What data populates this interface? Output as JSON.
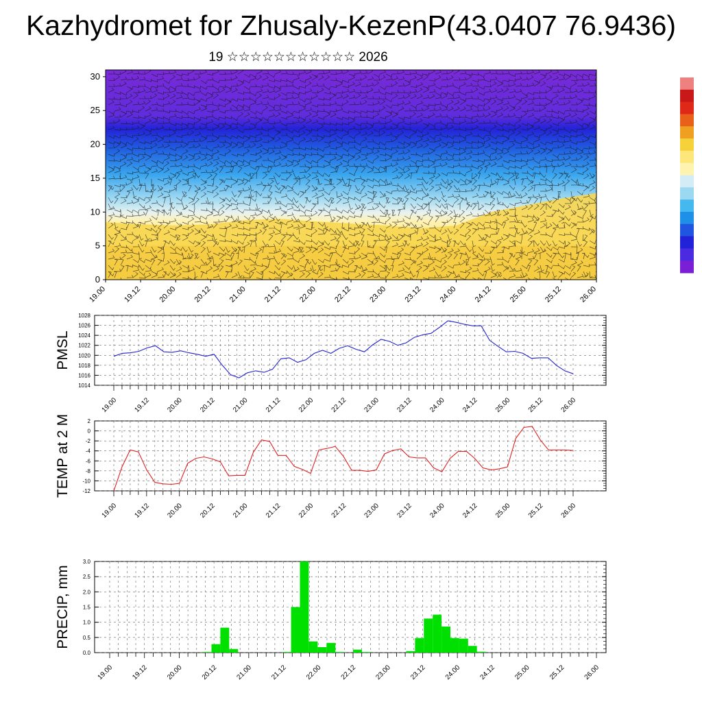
{
  "page": {
    "title": "Kazhydromet for Zhusaly-KezenP(43.0407 76.9436)",
    "subtitle": "19 ☆☆☆☆☆☆☆☆☆☆☆ 2026"
  },
  "chart_data": [
    {
      "type": "heatmap",
      "panel": "cross-section",
      "title": "",
      "xlabel": "",
      "ylabel": "",
      "x_ticks": [
        "19.00",
        "19.12",
        "20.00",
        "20.12",
        "21.00",
        "21.12",
        "22.00",
        "22.12",
        "23.00",
        "23.12",
        "24.00",
        "24.12",
        "25.00",
        "25.12",
        "26.00"
      ],
      "y_ticks": [
        "0",
        "5",
        "10",
        "15",
        "20",
        "25",
        "30"
      ],
      "ylim": [
        0,
        31
      ],
      "warm_layer_top": [
        {
          "x": 0,
          "y": 8.5
        },
        {
          "x": 1,
          "y": 8.2
        },
        {
          "x": 2,
          "y": 8.0
        },
        {
          "x": 3,
          "y": 8.2
        },
        {
          "x": 4,
          "y": 8.8
        },
        {
          "x": 5,
          "y": 9.0
        },
        {
          "x": 6,
          "y": 8.6
        },
        {
          "x": 7,
          "y": 8.3
        },
        {
          "x": 8,
          "y": 8.0
        },
        {
          "x": 9,
          "y": 7.6
        },
        {
          "x": 10,
          "y": 8.0
        },
        {
          "x": 11,
          "y": 10.0
        },
        {
          "x": 12,
          "y": 11.0
        },
        {
          "x": 13,
          "y": 12.0
        },
        {
          "x": 14,
          "y": 12.8
        }
      ],
      "colorbar": {
        "colors": [
          "#7a1fd6",
          "#4a2be0",
          "#2222d8",
          "#1f55e0",
          "#1e90e8",
          "#45b8f0",
          "#9bd8f2",
          "#d4ecf5",
          "#fff3b0",
          "#fde67a",
          "#f5d23a",
          "#f0a020",
          "#e8601a",
          "#e02818",
          "#c81818",
          "#ee8080"
        ]
      }
    },
    {
      "type": "line",
      "ylabel": "PMSL",
      "x_ticks": [
        "19.00",
        "19.12",
        "20.00",
        "20.12",
        "21.00",
        "21.12",
        "22.00",
        "22.12",
        "23.00",
        "23.12",
        "24.00",
        "24.12",
        "25.00",
        "25.12",
        "26.00"
      ],
      "y_ticks": [
        "1014",
        "1016",
        "1018",
        "1020",
        "1022",
        "1024",
        "1026",
        "1028"
      ],
      "ylim": [
        1014,
        1028
      ],
      "color": "#2020d0",
      "values": [
        1019.8,
        1020.4,
        1020.5,
        1020.8,
        1021.5,
        1021.9,
        1020.7,
        1020.6,
        1020.9,
        1020.5,
        1020.2,
        1019.8,
        1020.2,
        1018.0,
        1016.1,
        1015.5,
        1016.5,
        1016.9,
        1016.6,
        1017.2,
        1019.3,
        1019.5,
        1018.6,
        1019.1,
        1020.4,
        1021.0,
        1020.4,
        1021.4,
        1021.9,
        1021.2,
        1020.7,
        1022.1,
        1023.2,
        1022.8,
        1022.0,
        1022.5,
        1023.6,
        1024.1,
        1024.4,
        1025.6,
        1026.9,
        1026.6,
        1026.2,
        1025.9,
        1025.9,
        1023.0,
        1021.8,
        1020.7,
        1020.8,
        1020.4,
        1019.4,
        1019.5,
        1019.5,
        1018.0,
        1016.9,
        1016.3
      ]
    },
    {
      "type": "line",
      "ylabel": "TEMP at 2 M",
      "x_ticks": [
        "19.00",
        "19.12",
        "20.00",
        "20.12",
        "21.00",
        "21.12",
        "22.00",
        "22.12",
        "23.00",
        "23.12",
        "24.00",
        "24.12",
        "25.00",
        "25.12",
        "26.00"
      ],
      "y_ticks": [
        "2",
        "0",
        "-2",
        "-4",
        "-6",
        "-8",
        "-10",
        "-12"
      ],
      "ylim": [
        -12,
        2
      ],
      "color": "#e02020",
      "values": [
        -12.0,
        -7.2,
        -3.8,
        -4.2,
        -7.8,
        -10.3,
        -10.6,
        -10.7,
        -10.5,
        -6.5,
        -5.5,
        -5.2,
        -5.6,
        -6.2,
        -9.0,
        -8.9,
        -8.9,
        -4.3,
        -1.8,
        -2.1,
        -4.9,
        -4.9,
        -7.1,
        -7.7,
        -8.5,
        -3.8,
        -3.5,
        -3.1,
        -5.1,
        -7.9,
        -7.9,
        -8.1,
        -7.8,
        -4.6,
        -3.9,
        -3.6,
        -5.2,
        -5.4,
        -5.4,
        -7.4,
        -8.2,
        -5.5,
        -4.1,
        -4.1,
        -5.5,
        -7.4,
        -7.8,
        -7.6,
        -7.2,
        -1.5,
        0.7,
        0.9,
        -1.8,
        -3.8,
        -3.8,
        -3.8,
        -3.9
      ]
    },
    {
      "type": "bar",
      "ylabel": "PRECIP, mm",
      "x_ticks": [
        "19.00",
        "19.12",
        "20.00",
        "20.12",
        "21.00",
        "21.12",
        "22.00",
        "22.12",
        "23.00",
        "23.12",
        "24.00",
        "24.12",
        "25.00",
        "25.12",
        "26.00"
      ],
      "y_ticks": [
        "0.0",
        "0.5",
        "1.0",
        "1.5",
        "2.0",
        "2.5",
        "3.0"
      ],
      "ylim": [
        0,
        3.0
      ],
      "color": "#00e000",
      "values": [
        0,
        0,
        0,
        0,
        0,
        0,
        0,
        0,
        0,
        0,
        0,
        0.02,
        0.28,
        0.82,
        0.12,
        0,
        0,
        0,
        0,
        0,
        0.02,
        1.5,
        3.0,
        0.37,
        0.18,
        0.32,
        0.02,
        0,
        0.1,
        0.02,
        0,
        0,
        0,
        0,
        0.05,
        0.48,
        1.12,
        1.25,
        0.86,
        0.48,
        0.46,
        0.22,
        0.03,
        0,
        0,
        0,
        0,
        0,
        0,
        0,
        0,
        0,
        0,
        0,
        0,
        0
      ]
    }
  ]
}
